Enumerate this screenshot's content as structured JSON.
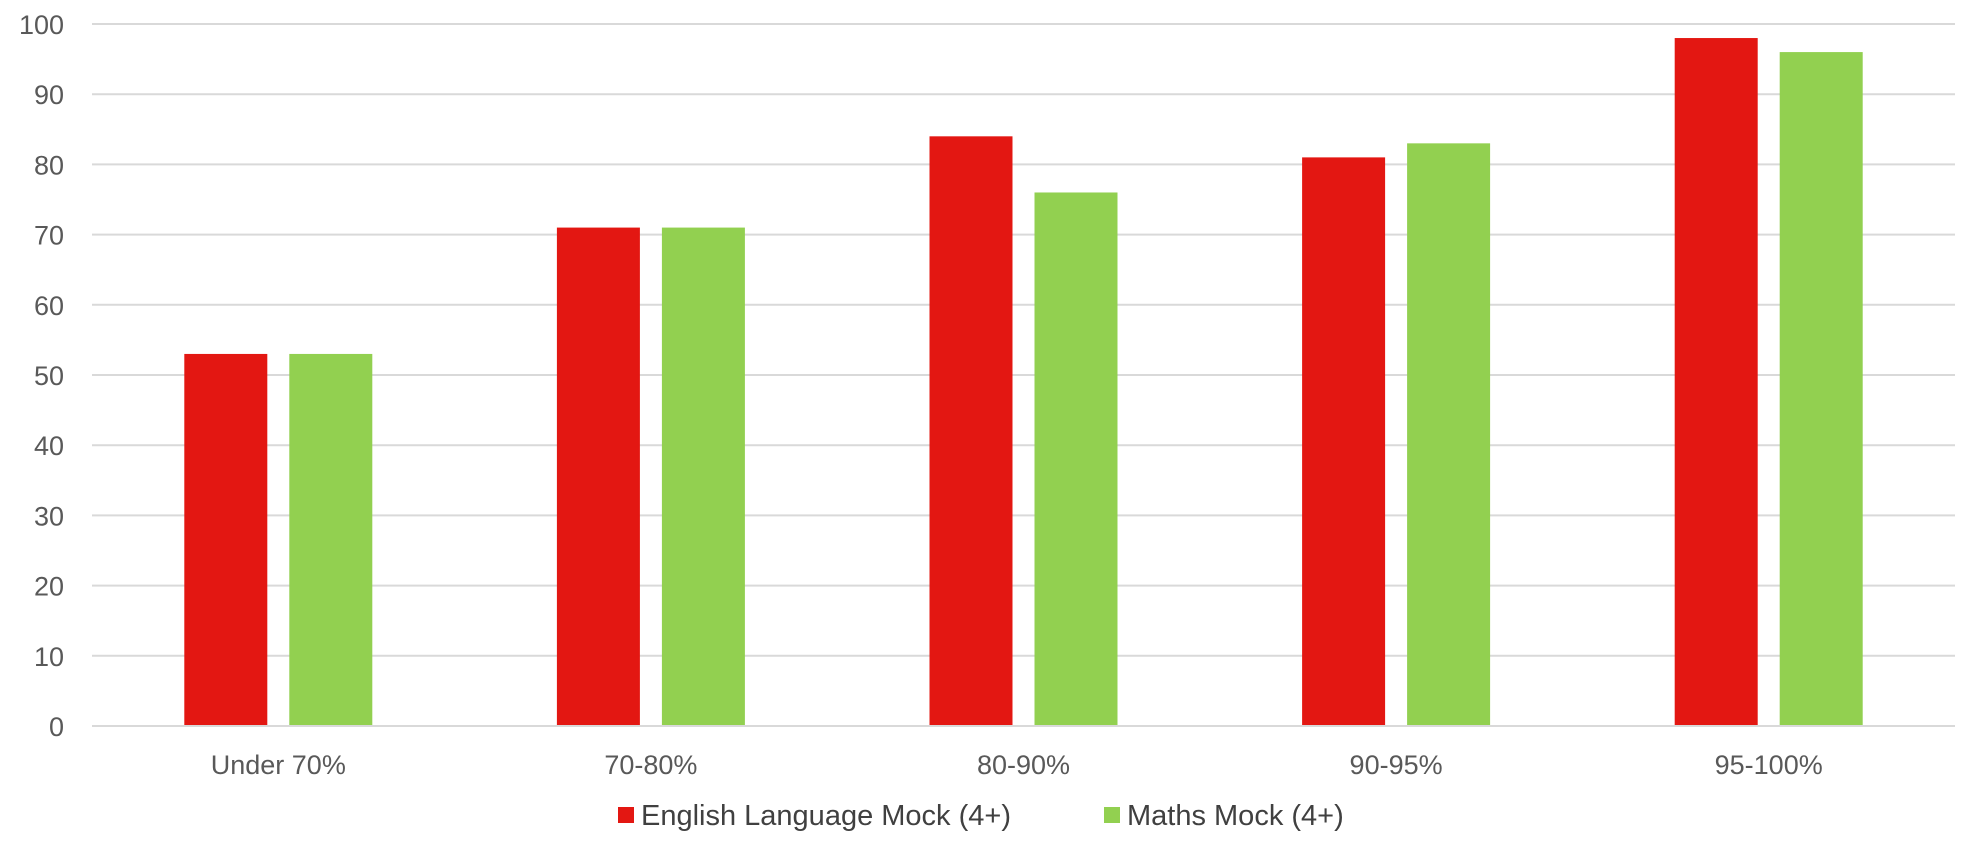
{
  "chart_data": {
    "type": "bar",
    "title": "",
    "xlabel": "",
    "ylabel": "",
    "categories": [
      "Under 70%",
      "70-80%",
      "80-90%",
      "90-95%",
      "95-100%"
    ],
    "series": [
      {
        "name": "English Language Mock (4+)",
        "color": "#e31712",
        "values": [
          53,
          71,
          84,
          81,
          98
        ]
      },
      {
        "name": "Maths Mock (4+)",
        "color": "#92d050",
        "values": [
          53,
          71,
          76,
          83,
          96
        ]
      }
    ],
    "ylim": [
      0,
      100
    ],
    "yticks": [
      0,
      10,
      20,
      30,
      40,
      50,
      60,
      70,
      80,
      90,
      100
    ],
    "grid": true,
    "legend_position": "bottom"
  }
}
